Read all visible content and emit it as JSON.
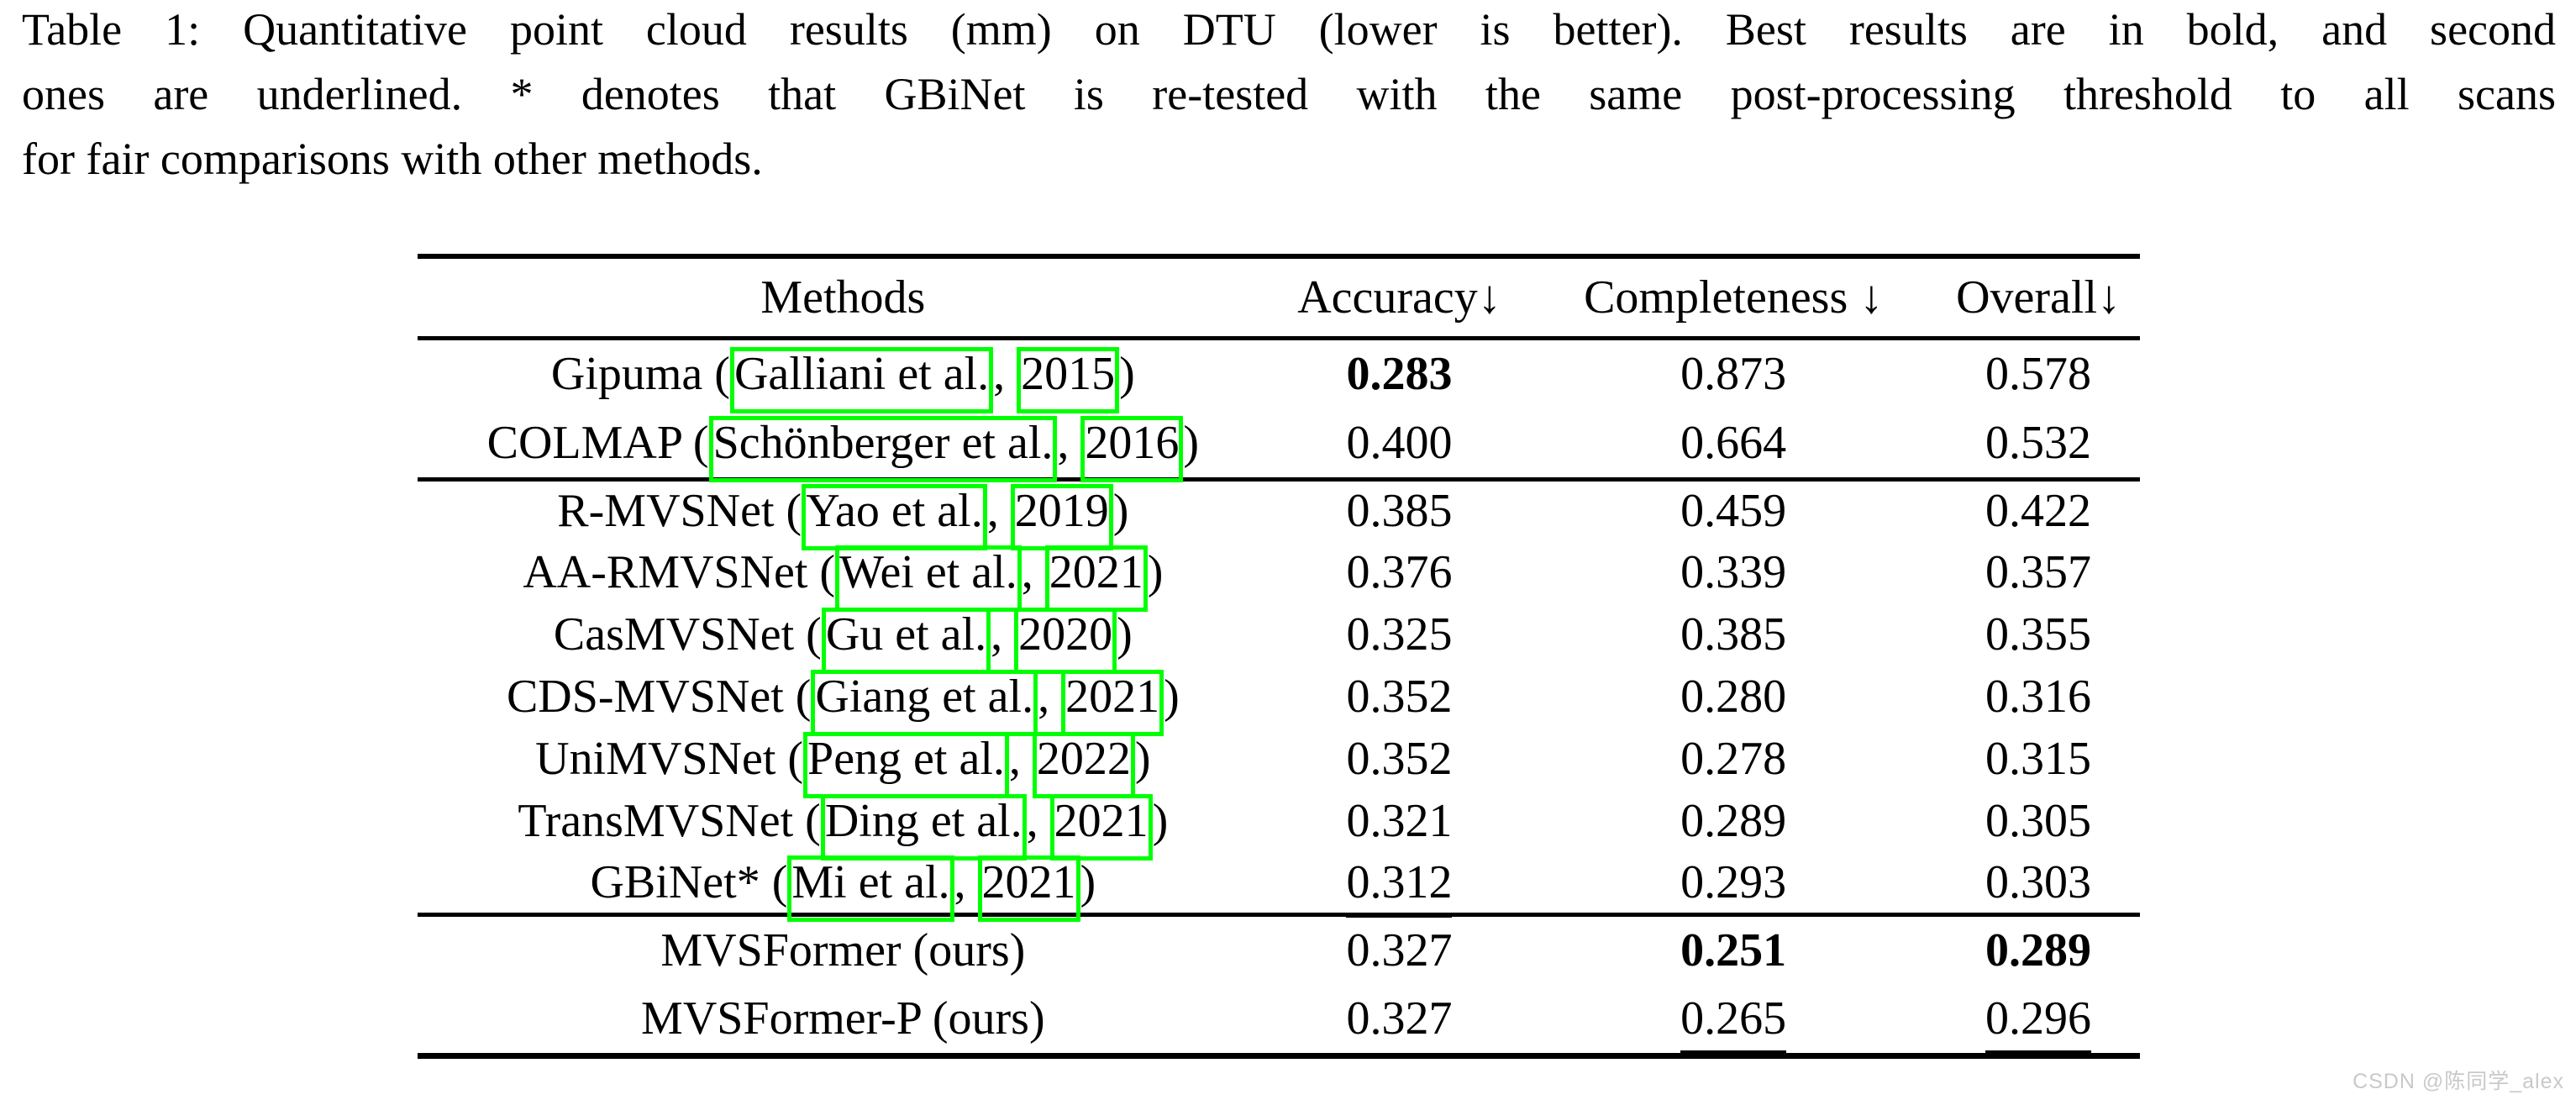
{
  "colors": {
    "link_box_green": "#00ff00",
    "watermark_gray": "#c9c9c9",
    "text": "#000000"
  },
  "caption": {
    "lines": [
      "Table 1: Quantitative point cloud results (mm) on DTU (lower is better). Best results are in bold, and second",
      "ones are underlined. * denotes that GBiNet is re-tested with the same post-processing threshold to all scans",
      "for fair comparisons with other methods."
    ]
  },
  "table": {
    "headers": [
      "Methods",
      "Accuracy↓",
      "Completeness ↓",
      "Overall↓"
    ],
    "groups": [
      {
        "rows": [
          {
            "method": {
              "pre": "Gipuma (",
              "author": "Galliani et al.",
              "sep": ", ",
              "year": "2015",
              "post": ")"
            },
            "values": [
              {
                "text": "0.283",
                "style": "bold"
              },
              {
                "text": "0.873",
                "style": "normal"
              },
              {
                "text": "0.578",
                "style": "normal"
              }
            ]
          },
          {
            "method": {
              "pre": "COLMAP (",
              "author": "Schönberger et al.",
              "sep": ", ",
              "year": "2016",
              "post": ")"
            },
            "values": [
              {
                "text": "0.400",
                "style": "normal"
              },
              {
                "text": "0.664",
                "style": "normal"
              },
              {
                "text": "0.532",
                "style": "normal"
              }
            ]
          }
        ]
      },
      {
        "rows": [
          {
            "method": {
              "pre": "R-MVSNet (",
              "author": "Yao et al.",
              "sep": ", ",
              "year": "2019",
              "post": ")"
            },
            "values": [
              {
                "text": "0.385",
                "style": "normal"
              },
              {
                "text": "0.459",
                "style": "normal"
              },
              {
                "text": "0.422",
                "style": "normal"
              }
            ]
          },
          {
            "method": {
              "pre": "AA-RMVSNet (",
              "author": "Wei et al.",
              "sep": ", ",
              "year": "2021",
              "post": ")"
            },
            "values": [
              {
                "text": "0.376",
                "style": "normal"
              },
              {
                "text": "0.339",
                "style": "normal"
              },
              {
                "text": "0.357",
                "style": "normal"
              }
            ]
          },
          {
            "method": {
              "pre": "CasMVSNet (",
              "author": "Gu et al.",
              "sep": ", ",
              "year": "2020",
              "post": ")"
            },
            "values": [
              {
                "text": "0.325",
                "style": "normal"
              },
              {
                "text": "0.385",
                "style": "normal"
              },
              {
                "text": "0.355",
                "style": "normal"
              }
            ]
          },
          {
            "method": {
              "pre": "CDS-MVSNet (",
              "author": "Giang et al.",
              "sep": ", ",
              "year": "2021",
              "post": ")"
            },
            "values": [
              {
                "text": "0.352",
                "style": "normal"
              },
              {
                "text": "0.280",
                "style": "normal"
              },
              {
                "text": "0.316",
                "style": "normal"
              }
            ]
          },
          {
            "method": {
              "pre": "UniMVSNet (",
              "author": "Peng et al.",
              "sep": ", ",
              "year": "2022",
              "post": ")"
            },
            "values": [
              {
                "text": "0.352",
                "style": "normal"
              },
              {
                "text": "0.278",
                "style": "normal"
              },
              {
                "text": "0.315",
                "style": "normal"
              }
            ]
          },
          {
            "method": {
              "pre": "TransMVSNet (",
              "author": "Ding et al.",
              "sep": ", ",
              "year": "2021",
              "post": ")"
            },
            "values": [
              {
                "text": "0.321",
                "style": "normal"
              },
              {
                "text": "0.289",
                "style": "normal"
              },
              {
                "text": "0.305",
                "style": "normal"
              }
            ]
          },
          {
            "method": {
              "pre": "GBiNet* (",
              "author": "Mi et al.",
              "sep": ", ",
              "year": "2021",
              "post": ")"
            },
            "values": [
              {
                "text": "0.312",
                "style": "underline"
              },
              {
                "text": "0.293",
                "style": "normal"
              },
              {
                "text": "0.303",
                "style": "normal"
              }
            ]
          }
        ]
      },
      {
        "rows": [
          {
            "method": {
              "pre": "MVSFormer (ours)"
            },
            "values": [
              {
                "text": "0.327",
                "style": "normal"
              },
              {
                "text": "0.251",
                "style": "bold"
              },
              {
                "text": "0.289",
                "style": "bold"
              }
            ]
          },
          {
            "method": {
              "pre": "MVSFormer-P (ours)"
            },
            "values": [
              {
                "text": "0.327",
                "style": "normal"
              },
              {
                "text": "0.265",
                "style": "underline"
              },
              {
                "text": "0.296",
                "style": "underline"
              }
            ]
          }
        ]
      }
    ]
  },
  "watermark": {
    "text": "CSDN @陈同学_alex"
  }
}
